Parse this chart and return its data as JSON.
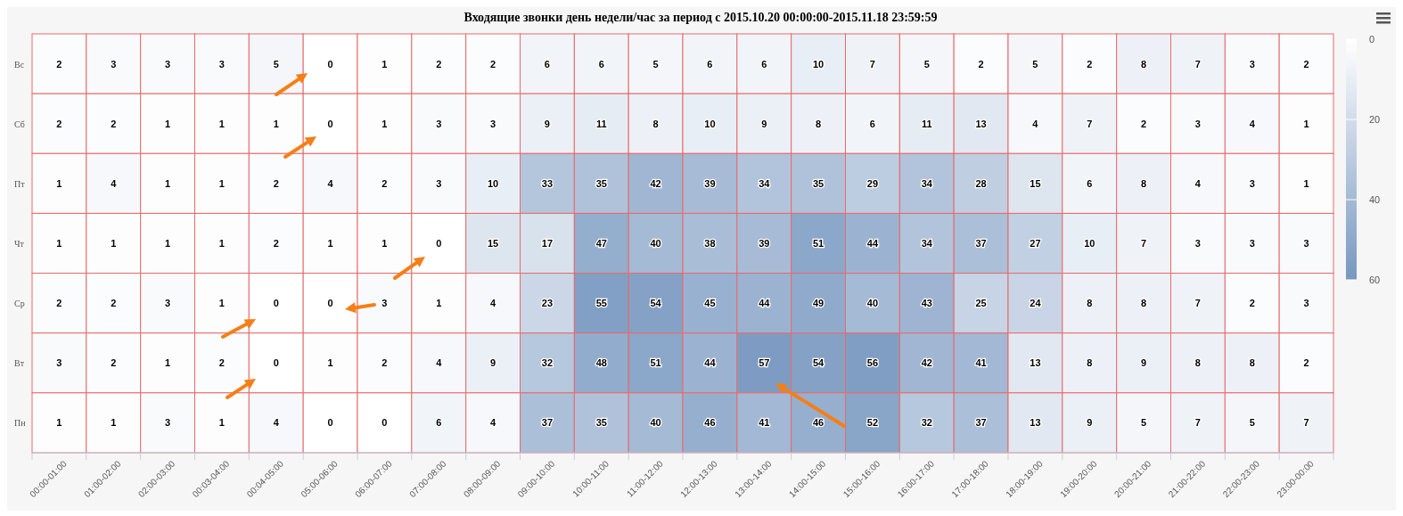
{
  "chart_data": {
    "type": "heatmap",
    "title": "Входящие звонки день недели/час за период с 2015.10.20 00:00:00-2015.11.18 23:59:59",
    "categories": [
      "00:00-01:00",
      "01:00-02:00",
      "02:00-03:00",
      "00:03-04:00",
      "00:04-05:00",
      "05:00-06:00",
      "06:00-07:00",
      "07:00-08:00",
      "08:00-09:00",
      "09:00-10:00",
      "10:00-11:00",
      "11:00-12:00",
      "12:00-13:00",
      "13:00-14:00",
      "14:00-15:00",
      "15:00-16:00",
      "16:00-17:00",
      "17:00-18:00",
      "18:00-19:00",
      "19:00-20:00",
      "20:00-21:00",
      "21:00-22:00",
      "22:00-23:00",
      "23:00-00:00"
    ],
    "y_categories": [
      "Вс",
      "Сб",
      "Пт",
      "Чт",
      "Ср",
      "Вт",
      "Пн"
    ],
    "cells": [
      [
        2,
        3,
        3,
        3,
        5,
        0,
        1,
        2,
        2,
        6,
        6,
        5,
        6,
        6,
        10,
        7,
        5,
        2,
        5,
        2,
        8,
        7,
        3,
        2
      ],
      [
        2,
        2,
        1,
        1,
        1,
        0,
        1,
        3,
        3,
        9,
        11,
        8,
        10,
        9,
        8,
        6,
        11,
        13,
        4,
        7,
        2,
        3,
        4,
        1
      ],
      [
        1,
        4,
        1,
        1,
        2,
        4,
        2,
        3,
        10,
        33,
        35,
        42,
        39,
        34,
        35,
        29,
        34,
        28,
        15,
        6,
        8,
        4,
        3,
        1
      ],
      [
        1,
        1,
        1,
        1,
        2,
        1,
        1,
        0,
        15,
        17,
        47,
        40,
        38,
        39,
        51,
        44,
        34,
        37,
        27,
        10,
        7,
        3,
        3,
        3
      ],
      [
        2,
        2,
        3,
        1,
        0,
        0,
        3,
        1,
        4,
        23,
        55,
        54,
        45,
        44,
        49,
        40,
        43,
        25,
        24,
        8,
        8,
        7,
        2,
        3
      ],
      [
        3,
        2,
        1,
        2,
        0,
        1,
        2,
        4,
        9,
        32,
        48,
        51,
        44,
        57,
        54,
        56,
        42,
        41,
        13,
        8,
        9,
        8,
        8,
        2
      ],
      [
        1,
        1,
        3,
        1,
        4,
        0,
        0,
        6,
        4,
        37,
        35,
        40,
        46,
        41,
        46,
        52,
        32,
        37,
        13,
        9,
        5,
        7,
        5,
        7
      ]
    ],
    "clim": [
      0,
      60
    ],
    "cticks": [
      0,
      20,
      40,
      60
    ],
    "colors": [
      "#ffffff",
      "#7797c0"
    ],
    "data_labels": true
  }
}
